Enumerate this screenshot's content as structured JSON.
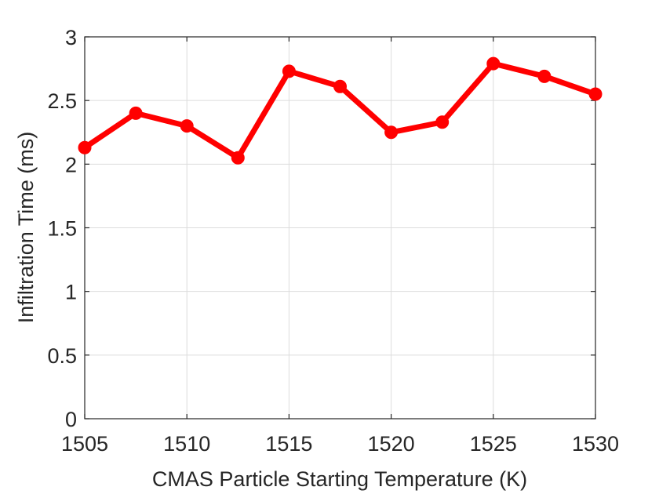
{
  "chart_data": {
    "type": "line",
    "title": "",
    "xlabel": "CMAS Particle Starting Temperature (K)",
    "ylabel": "Infiltration Time (ms)",
    "xlim": [
      1505,
      1530
    ],
    "ylim": [
      0,
      3
    ],
    "xticks": [
      "1505",
      "1510",
      "1515",
      "1520",
      "1525",
      "1530"
    ],
    "yticks": [
      "0",
      "0.5",
      "1",
      "1.5",
      "2",
      "2.5",
      "3"
    ],
    "grid": true,
    "series": [
      {
        "color": "#ff0000",
        "marker": "circle",
        "x": [
          1505,
          1507.5,
          1510,
          1512.5,
          1515,
          1517.5,
          1520,
          1522.5,
          1525,
          1527.5,
          1530
        ],
        "y": [
          2.13,
          2.4,
          2.3,
          2.05,
          2.73,
          2.61,
          2.25,
          2.33,
          2.79,
          2.69,
          2.55
        ]
      }
    ]
  }
}
